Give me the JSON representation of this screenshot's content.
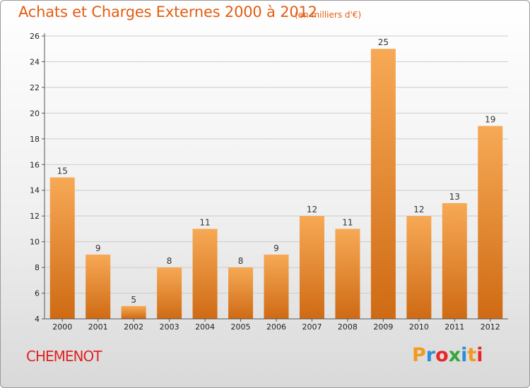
{
  "header": {
    "title": "Achats et Charges Externes 2000 à 2012",
    "unit": "(en milliers d'€)"
  },
  "location": "CHEMENOT",
  "logo": {
    "letters": [
      "P",
      "r",
      "o",
      "x",
      "i",
      "t",
      "i"
    ],
    "colors": [
      "#f39a1e",
      "#2d8fd5",
      "#e8262a",
      "#34a63c",
      "#2d8fd5",
      "#f39a1e",
      "#e8262a"
    ]
  },
  "colors": {
    "bar_light": "#f7a955",
    "bar_dark": "#cf6a14",
    "grid": "#cccccc",
    "accent": "#e35d12"
  },
  "chart_data": {
    "type": "bar",
    "title": "Achats et Charges Externes 2000 à 2012",
    "subtitle": "(en milliers d'€)",
    "categories": [
      "2000",
      "2001",
      "2002",
      "2003",
      "2004",
      "2005",
      "2006",
      "2007",
      "2008",
      "2009",
      "2010",
      "2011",
      "2012"
    ],
    "values": [
      15,
      9,
      5,
      8,
      11,
      8,
      9,
      12,
      11,
      25,
      12,
      13,
      19
    ],
    "ylim": [
      4,
      26
    ],
    "yticks": [
      4,
      6,
      8,
      10,
      12,
      14,
      16,
      18,
      20,
      22,
      24,
      26
    ],
    "grid": true,
    "data_labels": true
  }
}
